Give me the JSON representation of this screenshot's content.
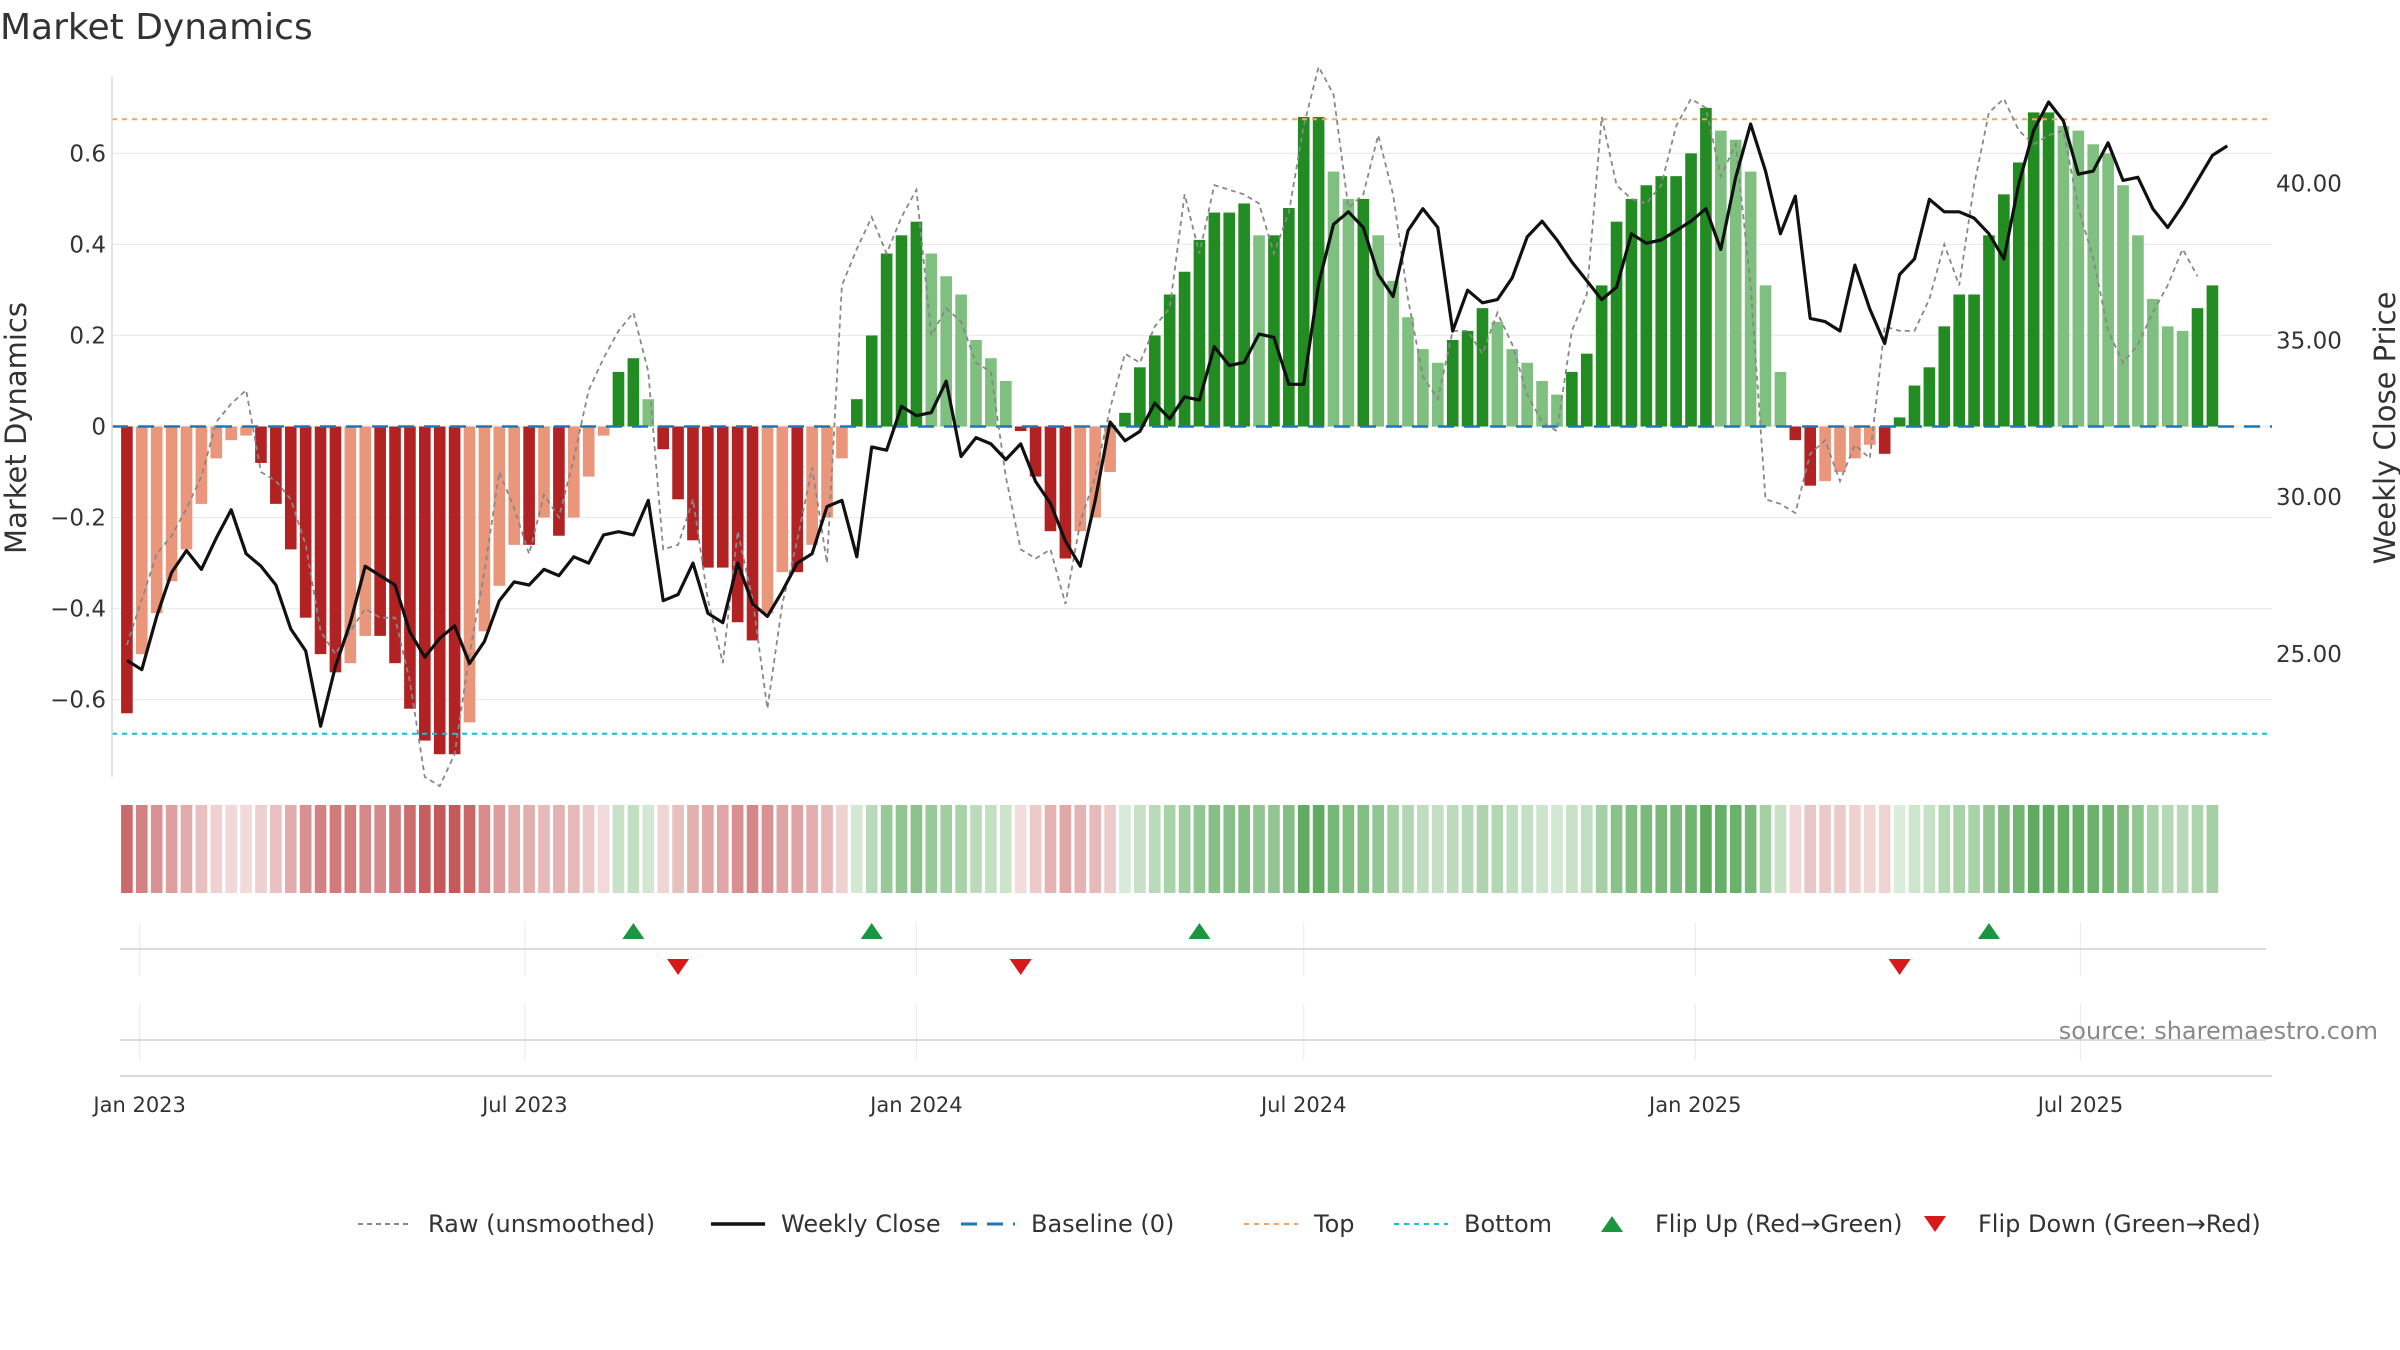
{
  "chart_data": {
    "type": "bar",
    "title": "Market Dynamics",
    "source": "source: sharemaestro.com",
    "y_label": "Market Dynamics",
    "y2_label": "Weekly Close Price",
    "ylim": [
      -0.77,
      0.77
    ],
    "y2lim": [
      21.08,
      43.43
    ],
    "y_ticks": [
      {
        "v": 0.6,
        "t": "0.6"
      },
      {
        "v": 0.4,
        "t": "0.4"
      },
      {
        "v": 0.2,
        "t": "0.2"
      },
      {
        "v": 0,
        "t": "0"
      },
      {
        "v": -0.2,
        "t": "−0.2"
      },
      {
        "v": -0.4,
        "t": "−0.4"
      },
      {
        "v": -0.6,
        "t": "−0.6"
      }
    ],
    "y2_ticks": [
      {
        "v": 40,
        "t": "40.00"
      },
      {
        "v": 35,
        "t": "35.00"
      },
      {
        "v": 30,
        "t": "30.00"
      },
      {
        "v": 25,
        "t": "25.00"
      }
    ],
    "x_start": "2022-12-19",
    "x_end": "2025-09-29",
    "x_ticks": [
      {
        "d": "2023-01-01",
        "t": "Jan 2023"
      },
      {
        "d": "2023-07-01",
        "t": "Jul 2023"
      },
      {
        "d": "2024-01-01",
        "t": "Jan 2024"
      },
      {
        "d": "2024-07-01",
        "t": "Jul 2024"
      },
      {
        "d": "2025-01-01",
        "t": "Jan 2025"
      },
      {
        "d": "2025-07-01",
        "t": "Jul 2025"
      }
    ],
    "week_start": "2022-12-26",
    "top_level": 0.675,
    "bottom_level": -0.675,
    "colors": {
      "strong_red": "#b22222",
      "light_red": "#e9967a",
      "strong_green": "#228b22",
      "light_green": "#7fbf7f",
      "raw": "#888888",
      "close": "#111111",
      "baseline": "#1f77b4",
      "top": "#f4a460",
      "bottom": "#17becf",
      "flip_up": "#1a9641",
      "flip_down": "#d7191c"
    },
    "series": [
      {
        "name": "Market Dynamics",
        "values": [
          -0.63,
          -0.5,
          -0.41,
          -0.34,
          -0.27,
          -0.17,
          -0.07,
          -0.03,
          -0.02,
          -0.08,
          -0.17,
          -0.27,
          -0.42,
          -0.5,
          -0.54,
          -0.52,
          -0.46,
          -0.46,
          -0.52,
          -0.62,
          -0.69,
          -0.72,
          -0.72,
          -0.65,
          -0.45,
          -0.35,
          -0.26,
          -0.26,
          -0.2,
          -0.24,
          -0.2,
          -0.11,
          -0.02,
          0.12,
          0.15,
          0.06,
          -0.05,
          -0.16,
          -0.25,
          -0.31,
          -0.31,
          -0.43,
          -0.47,
          -0.41,
          -0.32,
          -0.32,
          -0.26,
          -0.2,
          -0.07,
          0.06,
          0.2,
          0.38,
          0.42,
          0.45,
          0.38,
          0.33,
          0.29,
          0.19,
          0.15,
          0.1,
          -0.01,
          -0.11,
          -0.23,
          -0.29,
          -0.23,
          -0.2,
          -0.1,
          0.03,
          0.13,
          0.2,
          0.29,
          0.34,
          0.41,
          0.47,
          0.47,
          0.49,
          0.42,
          0.42,
          0.48,
          0.68,
          0.68,
          0.56,
          0.5,
          0.5,
          0.42,
          0.32,
          0.24,
          0.17,
          0.14,
          0.19,
          0.21,
          0.26,
          0.23,
          0.17,
          0.14,
          0.1,
          0.07,
          0.12,
          0.16,
          0.31,
          0.45,
          0.5,
          0.53,
          0.55,
          0.55,
          0.6,
          0.7,
          0.65,
          0.63,
          0.56,
          0.31,
          0.12,
          -0.03,
          -0.13,
          -0.12,
          -0.1,
          -0.07,
          -0.04,
          -0.06,
          0.02,
          0.09,
          0.13,
          0.22,
          0.29,
          0.29,
          0.42,
          0.51,
          0.58,
          0.69,
          0.69,
          0.66,
          0.65,
          0.62,
          0.6,
          0.53,
          0.42,
          0.28,
          0.22,
          0.21,
          0.26,
          0.31
        ]
      },
      {
        "name": "Weekly Close",
        "values": [
          24.8,
          24.5,
          26.2,
          27.6,
          28.3,
          27.7,
          28.7,
          29.6,
          28.2,
          27.8,
          27.2,
          25.8,
          25.1,
          22.7,
          24.6,
          26,
          27.8,
          27.5,
          27.2,
          25.7,
          24.9,
          25.5,
          25.9,
          24.7,
          25.4,
          26.7,
          27.3,
          27.2,
          27.7,
          27.5,
          28.1,
          27.9,
          28.8,
          28.9,
          28.8,
          29.9,
          26.7,
          26.9,
          27.9,
          26.3,
          26,
          27.9,
          26.6,
          26.2,
          27,
          27.9,
          28.2,
          29.7,
          29.9,
          28.1,
          31.6,
          31.5,
          32.9,
          32.6,
          32.7,
          33.7,
          31.3,
          31.9,
          31.7,
          31.2,
          31.7,
          30.5,
          29.8,
          28.6,
          27.8,
          29.9,
          32.4,
          31.8,
          32.1,
          33,
          32.5,
          33.2,
          33.1,
          34.8,
          34.2,
          34.3,
          35.2,
          35.1,
          33.6,
          33.6,
          36.8,
          38.7,
          39.1,
          38.6,
          37.1,
          36.4,
          38.5,
          39.2,
          38.6,
          35.3,
          36.6,
          36.2,
          36.3,
          37,
          38.3,
          38.8,
          38.2,
          37.5,
          36.9,
          36.3,
          36.7,
          38.4,
          38.1,
          38.2,
          38.5,
          38.8,
          39.2,
          37.9,
          40.2,
          41.9,
          40.4,
          38.4,
          39.6,
          35.7,
          35.6,
          35.3,
          37.4,
          36,
          34.9,
          37.1,
          37.6,
          39.5,
          39.1,
          39.1,
          38.9,
          38.4,
          37.6,
          40,
          41.7,
          42.6,
          42,
          40.3,
          40.4,
          41.3,
          40.1,
          40.2,
          39.2,
          38.6,
          39.3,
          40.1,
          40.9,
          41.2
        ]
      },
      {
        "name": "Raw (unsmoothed)",
        "values": [
          -0.48,
          -0.38,
          -0.28,
          -0.24,
          -0.18,
          -0.11,
          0.01,
          0.05,
          0.08,
          -0.1,
          -0.12,
          -0.16,
          -0.26,
          -0.45,
          -0.5,
          -0.45,
          -0.4,
          -0.42,
          -0.42,
          -0.56,
          -0.77,
          -0.79,
          -0.72,
          -0.5,
          -0.32,
          -0.1,
          -0.18,
          -0.28,
          -0.15,
          -0.2,
          -0.07,
          0.08,
          0.15,
          0.21,
          0.25,
          0.12,
          -0.27,
          -0.26,
          -0.16,
          -0.38,
          -0.52,
          -0.23,
          -0.38,
          -0.62,
          -0.39,
          -0.25,
          -0.09,
          -0.3,
          0.31,
          0.39,
          0.46,
          0.38,
          0.46,
          0.52,
          0.2,
          0.26,
          0.23,
          0.14,
          0.12,
          -0.11,
          -0.27,
          -0.29,
          -0.27,
          -0.39,
          -0.21,
          -0.11,
          0.04,
          0.16,
          0.14,
          0.22,
          0.26,
          0.51,
          0.38,
          0.53,
          0.52,
          0.51,
          0.49,
          0.38,
          0.47,
          0.66,
          0.79,
          0.73,
          0.48,
          0.51,
          0.64,
          0.51,
          0.28,
          0.11,
          0.06,
          0.21,
          0.21,
          0.16,
          0.25,
          0.18,
          0.07,
          0.01,
          -0.01,
          0.21,
          0.29,
          0.68,
          0.53,
          0.5,
          0.49,
          0.53,
          0.66,
          0.72,
          0.7,
          0.55,
          0.62,
          0.31,
          -0.16,
          -0.17,
          -0.19,
          -0.06,
          -0.03,
          -0.12,
          -0.04,
          -0.07,
          0.22,
          0.21,
          0.21,
          0.28,
          0.4,
          0.31,
          0.53,
          0.69,
          0.72,
          0.65,
          0.62,
          0.64,
          0.65,
          0.48,
          0.37,
          0.21,
          0.14,
          0.18,
          0.25,
          0.31,
          0.39,
          0.33
        ]
      }
    ],
    "flip_up_dates": [
      "2023-08-21",
      "2023-12-11",
      "2024-05-13",
      "2025-05-19"
    ],
    "flip_down_dates": [
      "2023-09-11",
      "2024-02-19",
      "2025-04-07"
    ],
    "legend": [
      {
        "key": "raw",
        "label": "Raw (unsmoothed)"
      },
      {
        "key": "close",
        "label": "Weekly Close"
      },
      {
        "key": "baseline",
        "label": "Baseline (0)"
      },
      {
        "key": "top",
        "label": "Top"
      },
      {
        "key": "bottom",
        "label": "Bottom"
      },
      {
        "key": "flip_up",
        "label": "Flip Up (Red→Green)"
      },
      {
        "key": "flip_down",
        "label": "Flip Down (Green→Red)"
      }
    ]
  }
}
